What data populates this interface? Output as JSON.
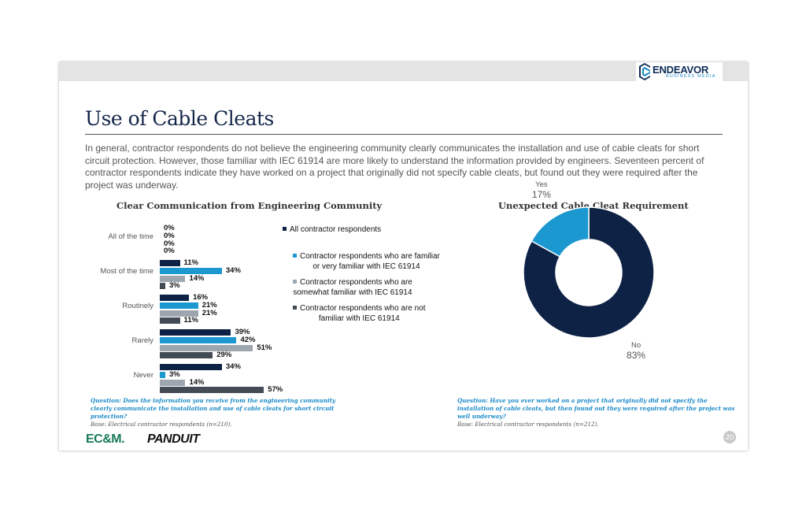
{
  "header": {
    "logo_name": "ENDEAVOR",
    "logo_sub": "BUSINESS MEDIA"
  },
  "title": "Use of Cable Cleats",
  "intro": "In general, contractor respondents do not believe the engineering community clearly communicates the installation and use of cable cleats for short circuit protection. However, those familiar with IEC 61914 are more likely to understand the information provided by engineers. Seventeen percent of contractor respondents indicate they have worked on a project that originally did not specify cable cleats, but found out they were required after the project was underway.",
  "chart_data": [
    {
      "type": "bar",
      "orientation": "horizontal",
      "title": "Clear Communication from Engineering Community",
      "categories": [
        "All of the time",
        "Most of the time",
        "Routinely",
        "Rarely",
        "Never"
      ],
      "series": [
        {
          "name": "All contractor respondents",
          "color": "#0d2245",
          "values": [
            0,
            11,
            16,
            39,
            34
          ]
        },
        {
          "name": "Contractor respondents who are familiar or very familiar with IEC 61914",
          "color": "#1b98d0",
          "values": [
            0,
            34,
            21,
            42,
            3
          ]
        },
        {
          "name": "Contractor respondents who are somewhat familiar with IEC 61914",
          "color": "#9da5ae",
          "values": [
            0,
            14,
            21,
            51,
            14
          ]
        },
        {
          "name": "Contractor respondents who are not familiar with IEC 61914",
          "color": "#434b55",
          "values": [
            0,
            3,
            11,
            29,
            57
          ]
        }
      ],
      "legend_placement": "right",
      "xlim": [
        0,
        60
      ],
      "unit": "%"
    },
    {
      "type": "pie",
      "style": "donut",
      "title": "Unexpected Cable Cleat Requirement",
      "slices": [
        {
          "label": "No",
          "value": 83,
          "color": "#0d2245"
        },
        {
          "label": "Yes",
          "value": 17,
          "color": "#1b98d0"
        }
      ],
      "unit": "%"
    }
  ],
  "legend_lines": [
    [
      "All contractor respondents"
    ],
    [
      "Contractor respondents who are familiar",
      "or very familiar with IEC 61914"
    ],
    [
      "Contractor respondents who are",
      "somewhat familiar with IEC 61914"
    ],
    [
      "Contractor respondents who are not",
      "familiar with IEC 61914"
    ]
  ],
  "notes": {
    "left_question": "Question: Does the information you receive from the engineering community clearly communicate the installation and use of cable cleats for short circuit protection?",
    "left_base": "Base: Electrical contractor respondents (n=210).",
    "right_question": "Question: Have you ever worked on a project that originally did not specify the installation of cable cleats, but then found out they were required after the project was well underway?",
    "right_base": "Base: Electrical contractor respondents (n=212)."
  },
  "footer": {
    "ecm": "EC&M.",
    "panduit": "PANDUIT",
    "page": "20"
  }
}
